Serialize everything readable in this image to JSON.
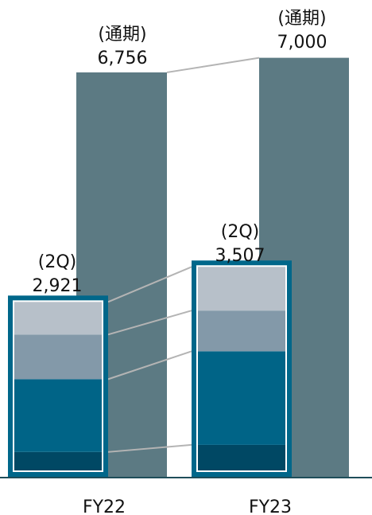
{
  "chart_data": {
    "type": "bar",
    "categories": [
      "FY22",
      "FY23"
    ],
    "series": [
      {
        "label": "(通期)",
        "values": [
          6756,
          7000
        ],
        "value_labels": [
          "6,756",
          "7,000"
        ],
        "color": "#5c7a83"
      },
      {
        "label": "(2Q)",
        "values": [
          2921,
          3507
        ],
        "value_labels": [
          "2,921",
          "3,507"
        ],
        "frame_color": "#00678a",
        "segments": [
          [
            320,
            1262,
            774,
            565
          ],
          [
            440,
            1613,
            701,
            753
          ]
        ],
        "segment_colors": [
          "#004864",
          "#006487",
          "#8399a9",
          "#b7c0c9"
        ]
      }
    ],
    "connector_color": "#b4b4b4",
    "axis_color": "#1f4e5a"
  }
}
